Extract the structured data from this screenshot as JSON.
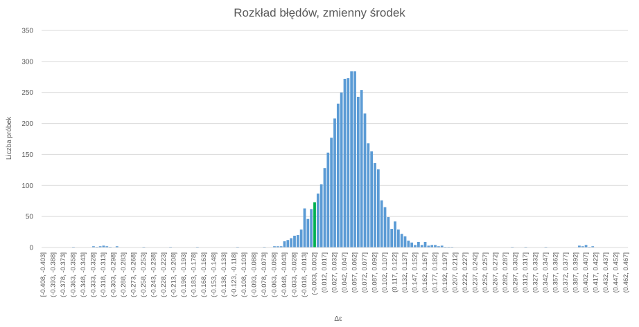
{
  "chart_data": {
    "type": "bar",
    "title": "Rozkład błędów, zmienny środek",
    "xlabel": "Δε",
    "ylabel": "Liczba próbek",
    "ylim": [
      0,
      350
    ],
    "yticks": [
      0,
      50,
      100,
      150,
      200,
      250,
      300,
      350
    ],
    "grid": "horizontal",
    "legend": "none",
    "bar_color": "#5b9bd5",
    "highlight_color": "#00b050",
    "highlight_index": 81,
    "x_start": -0.408,
    "bin_width": 0.005,
    "bin_count": 175,
    "tick_labels": [
      "[-0.408, -0.403]",
      "(-0.393, -0.388]",
      "(-0.378, -0.373]",
      "(-0.363, -0.358]",
      "(-0.348, -0.343]",
      "(-0.333, -0.328]",
      "(-0.318, -0.313]",
      "(-0.303, -0.298]",
      "(-0.288, -0.283]",
      "(-0.273, -0.268]",
      "(-0.258, -0.253]",
      "(-0.243, -0.238]",
      "(-0.228, -0.223]",
      "(-0.213, -0.208]",
      "(-0.198, -0.193]",
      "(-0.183, -0.178]",
      "(-0.168, -0.163]",
      "(-0.153, -0.148]",
      "(-0.138, -0.133]",
      "(-0.123, -0.118]",
      "(-0.108, -0.103]",
      "(-0.093, -0.088]",
      "(-0.078, -0.073]",
      "(-0.063, -0.058]",
      "(-0.048, -0.043]",
      "(-0.033, -0.028]",
      "(-0.018, -0.013]",
      "(-0.003, 0.002]",
      "(0.012, 0.017]",
      "(0.027, 0.032]",
      "(0.042, 0.047]",
      "(0.057, 0.062]",
      "(0.072, 0.077]",
      "(0.087, 0.092]",
      "(0.102, 0.107]",
      "(0.117, 0.122]",
      "(0.132, 0.137]",
      "(0.147, 0.152]",
      "(0.162, 0.167]",
      "(0.177, 0.182]",
      "(0.192, 0.197]",
      "(0.207, 0.212]",
      "(0.222, 0.227]",
      "(0.237, 0.242]",
      "(0.252, 0.257]",
      "(0.267, 0.272]",
      "(0.282, 0.287]",
      "(0.297, 0.302]",
      "(0.312, 0.317]",
      "(0.327, 0.332]",
      "(0.342, 0.347]",
      "(0.357, 0.362]",
      "(0.372, 0.377]",
      "(0.387, 0.392]",
      "(0.402, 0.407]",
      "(0.417, 0.422]",
      "(0.432, 0.437]",
      "(0.447, 0.452]",
      "(0.462, 0.467]"
    ],
    "values": [
      0,
      0,
      0,
      0,
      0,
      0,
      0,
      0,
      0,
      1,
      0,
      0,
      0,
      0,
      0,
      2,
      1,
      2,
      3,
      2,
      1,
      0,
      2,
      0,
      0,
      0,
      0,
      0,
      0,
      0,
      1,
      0,
      0,
      0,
      0,
      0,
      0,
      0,
      1,
      0,
      0,
      0,
      0,
      0,
      0,
      0,
      1,
      0,
      0,
      0,
      0,
      0,
      0,
      0,
      0,
      0,
      0,
      0,
      1,
      0,
      0,
      0,
      0,
      0,
      0,
      0,
      1,
      0,
      0,
      2,
      2,
      2,
      10,
      12,
      15,
      19,
      20,
      29,
      63,
      46,
      62,
      73,
      87,
      102,
      128,
      153,
      177,
      208,
      232,
      250,
      272,
      273,
      284,
      284,
      243,
      254,
      216,
      168,
      155,
      136,
      126,
      76,
      65,
      49,
      30,
      42,
      29,
      22,
      18,
      11,
      8,
      4,
      9,
      4,
      9,
      3,
      4,
      4,
      2,
      3,
      1,
      1,
      1,
      0,
      0,
      0,
      0,
      0,
      0,
      0,
      0,
      0,
      0,
      0,
      0,
      0,
      0,
      0,
      0,
      0,
      1,
      0,
      0,
      0,
      1,
      0,
      0,
      0,
      0,
      0,
      1,
      0,
      0,
      0,
      0,
      0,
      0,
      0,
      0,
      0,
      3,
      2,
      4,
      1,
      2,
      0,
      0,
      0,
      0,
      0,
      0,
      0,
      0,
      0,
      0
    ]
  }
}
